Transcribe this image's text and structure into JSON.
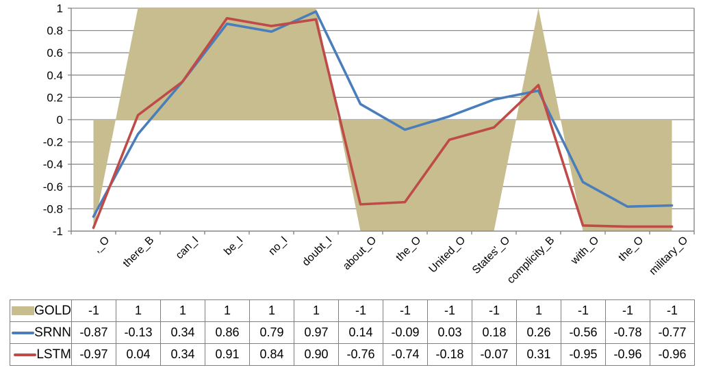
{
  "chart_data": {
    "type": "line",
    "categories": [
      ",_O",
      "there_B",
      "can_I",
      "be_I",
      "no_I",
      "doubt_I",
      "about_O",
      "the_O",
      "United_O",
      "States'_O",
      "complicity_B",
      "with_O",
      "the_O",
      "military_O"
    ],
    "series": [
      {
        "name": "GOLD",
        "style": "area",
        "color": "#C7BD8F",
        "values": [
          -1,
          1,
          1,
          1,
          1,
          1,
          -1,
          -1,
          -1,
          -1,
          1,
          -1,
          -1,
          -1
        ]
      },
      {
        "name": "SRNN",
        "style": "line",
        "color": "#4A7EBB",
        "values": [
          -0.87,
          -0.13,
          0.34,
          0.86,
          0.79,
          0.97,
          0.14,
          -0.09,
          0.03,
          0.18,
          0.26,
          -0.56,
          -0.78,
          -0.77
        ]
      },
      {
        "name": "LSTM",
        "style": "line",
        "color": "#BE4B48",
        "values": [
          -0.97,
          0.04,
          0.34,
          0.91,
          0.84,
          0.9,
          -0.76,
          -0.74,
          -0.18,
          -0.07,
          0.31,
          -0.95,
          -0.96,
          -0.96
        ]
      }
    ],
    "title": "",
    "xlabel": "",
    "ylabel": "",
    "ylim": [
      -1,
      1
    ],
    "ytick_labels": [
      "1",
      "0.8",
      "0.6",
      "0.4",
      "0.2",
      "0",
      "-0.2",
      "-0.4",
      "-0.6",
      "-0.8",
      "-1"
    ],
    "grid": true,
    "legend_position": "table-below-left"
  },
  "table": {
    "rows": [
      {
        "label": "GOLD",
        "swatch": "area",
        "color": "#C7BD8F",
        "cells": [
          "-1",
          "1",
          "1",
          "1",
          "1",
          "1",
          "-1",
          "-1",
          "-1",
          "-1",
          "1",
          "-1",
          "-1",
          "-1"
        ]
      },
      {
        "label": "SRNN",
        "swatch": "line",
        "color": "#4A7EBB",
        "cells": [
          "-0.87",
          "-0.13",
          "0.34",
          "0.86",
          "0.79",
          "0.97",
          "0.14",
          "-0.09",
          "0.03",
          "0.18",
          "0.26",
          "-0.56",
          "-0.78",
          "-0.77"
        ]
      },
      {
        "label": "LSTM",
        "swatch": "line",
        "color": "#BE4B48",
        "cells": [
          "-0.97",
          "0.04",
          "0.34",
          "0.91",
          "0.84",
          "0.90",
          "-0.76",
          "-0.74",
          "-0.18",
          "-0.07",
          "0.31",
          "-0.95",
          "-0.96",
          "-0.96"
        ]
      }
    ]
  },
  "colors": {
    "gold_fill": "#C7BD8F",
    "srnn_blue": "#4A7EBB",
    "lstm_red": "#BE4B48",
    "gridline": "#8c8c8c",
    "axis": "#808080",
    "table_border": "#7f7f7f",
    "text": "#000000",
    "background": "#FFFFFF"
  }
}
